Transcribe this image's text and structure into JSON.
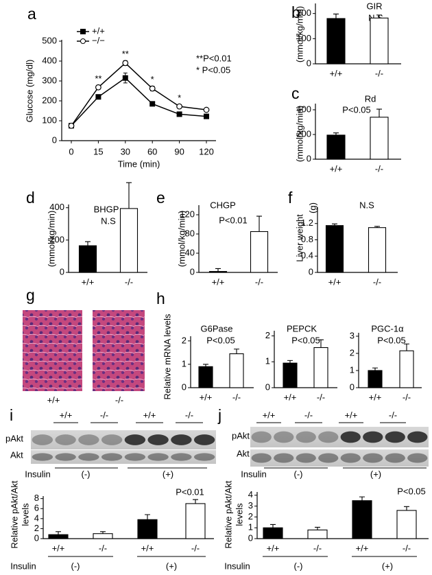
{
  "chart_data": [
    {
      "type": "line",
      "panel": "a",
      "xlabel": "Time (min)",
      "ylabel": "Glucose (mg/dl)",
      "categories": [
        "0",
        "15",
        "30",
        "60",
        "90",
        "120"
      ],
      "ylim": [
        0,
        500
      ],
      "yticks": [
        0,
        100,
        200,
        300,
        400,
        500
      ],
      "series": [
        {
          "name": "+/+",
          "color": "#000000",
          "marker": "square",
          "values": [
            75,
            220,
            315,
            185,
            133,
            122
          ],
          "errors": [
            3,
            8,
            25,
            10,
            8,
            8
          ]
        },
        {
          "name": "−/−",
          "color": "#ffffff",
          "marker": "circle",
          "values": [
            75,
            268,
            390,
            262,
            172,
            155
          ],
          "errors": [
            3,
            10,
            12,
            12,
            8,
            6
          ]
        }
      ],
      "significance": [
        null,
        "**",
        "**",
        "*",
        "*",
        null
      ],
      "notes": [
        "**P<0.01",
        "* P<0.05"
      ]
    },
    {
      "type": "bar",
      "panel": "b",
      "title": "GIR",
      "subtitle": "N.S",
      "ylabel": "(mmol/kg/min)",
      "categories": [
        "+/+",
        "-/-"
      ],
      "values": [
        180,
        182
      ],
      "errors": [
        18,
        12
      ],
      "colors": [
        "#000000",
        "#ffffff"
      ],
      "ylim": [
        0,
        240
      ],
      "yticks": [
        0,
        100,
        200
      ]
    },
    {
      "type": "bar",
      "panel": "c",
      "title": "Rd",
      "subtitle": "P<0.05",
      "ylabel": "(mmol/kg/min)",
      "categories": [
        "+/+",
        "-/-"
      ],
      "values": [
        195,
        340
      ],
      "errors": [
        18,
        65
      ],
      "colors": [
        "#000000",
        "#ffffff"
      ],
      "ylim": [
        0,
        450
      ],
      "yticks": [
        0,
        200,
        400
      ]
    },
    {
      "type": "bar",
      "panel": "d",
      "title": "BHGP",
      "subtitle": "N.S",
      "ylabel": "(mmol/kg/min)",
      "categories": [
        "+/+",
        "-/-"
      ],
      "values": [
        165,
        395
      ],
      "errors": [
        25,
        160
      ],
      "colors": [
        "#000000",
        "#ffffff"
      ],
      "ylim": [
        0,
        420
      ],
      "yticks": [
        0,
        200,
        400
      ]
    },
    {
      "type": "bar",
      "panel": "e",
      "title": "CHGP",
      "subtitle": "P<0.01",
      "ylabel": "(mmol/kg/min)",
      "categories": [
        "+/+",
        "-/-"
      ],
      "values": [
        2,
        85
      ],
      "errors": [
        6,
        32
      ],
      "colors": [
        "#000000",
        "#ffffff"
      ],
      "ylim": [
        0,
        140
      ],
      "yticks": [
        0,
        40,
        80,
        120
      ]
    },
    {
      "type": "bar",
      "panel": "f",
      "title": "N.S",
      "ylabel": "Liver weight",
      "unit": "(g)",
      "categories": [
        "+/+",
        "-/-"
      ],
      "values": [
        1.15,
        1.1
      ],
      "errors": [
        0.04,
        0.03
      ],
      "colors": [
        "#000000",
        "#ffffff"
      ],
      "ylim": [
        0,
        1.6
      ],
      "yticks": [
        0,
        0.4,
        0.8,
        1.2
      ]
    },
    {
      "type": "bar",
      "panel": "h",
      "title": "G6Pase",
      "subtitle": "P<0.05",
      "ylabel": "Relative mRNA levels",
      "categories": [
        "+/+",
        "-/-"
      ],
      "values": [
        0.9,
        1.45
      ],
      "errors": [
        0.1,
        0.2
      ],
      "colors": [
        "#000000",
        "#ffffff"
      ],
      "ylim": [
        0,
        2.2
      ],
      "yticks": [
        0,
        1,
        2
      ]
    },
    {
      "type": "bar",
      "title": "PEPCK",
      "subtitle": "P<0.05",
      "categories": [
        "+/+",
        "-/-"
      ],
      "values": [
        0.95,
        1.55
      ],
      "errors": [
        0.1,
        0.3
      ],
      "colors": [
        "#000000",
        "#ffffff"
      ],
      "ylim": [
        0,
        2.2
      ],
      "yticks": [
        0,
        1,
        2
      ]
    },
    {
      "type": "bar",
      "title": "PGC-1α",
      "subtitle": "P<0.05",
      "categories": [
        "+/+",
        "-/-"
      ],
      "values": [
        1.0,
        2.15
      ],
      "errors": [
        0.15,
        0.4
      ],
      "colors": [
        "#000000",
        "#ffffff"
      ],
      "ylim": [
        0,
        3.2
      ],
      "yticks": [
        0,
        1,
        2,
        3
      ]
    },
    {
      "type": "bar",
      "subtitle": "P<0.01",
      "ylabel": [
        "Relative pAkt/Akt",
        "levels"
      ],
      "categories": [
        "+/+",
        "-/-",
        "+/+",
        "-/-"
      ],
      "values": [
        0.8,
        1.0,
        3.8,
        7.0
      ],
      "errors": [
        0.6,
        0.4,
        1.0,
        0.8
      ],
      "colors": [
        "#000000",
        "#ffffff",
        "#000000",
        "#ffffff"
      ],
      "condition_label": "Insulin",
      "conditions": [
        "(-)",
        "(+)"
      ],
      "ylim": [
        0,
        8.5
      ],
      "yticks": [
        0,
        2,
        4,
        6,
        8
      ]
    },
    {
      "type": "bar",
      "subtitle": "P<0.05",
      "ylabel": [
        "Relative pAkt/Akt",
        "levels"
      ],
      "categories": [
        "+/+",
        "-/-",
        "+/+",
        "-/-"
      ],
      "values": [
        1.0,
        0.8,
        3.5,
        2.6
      ],
      "errors": [
        0.3,
        0.25,
        0.35,
        0.35
      ],
      "colors": [
        "#000000",
        "#ffffff",
        "#000000",
        "#ffffff"
      ],
      "condition_label": "Insulin",
      "conditions": [
        "(-)",
        "(+)"
      ],
      "ylim": [
        0,
        4.3
      ],
      "yticks": [
        0,
        1,
        2,
        3,
        4
      ]
    }
  ],
  "histology": {
    "panel": "g",
    "labels": [
      "+/+",
      "-/-"
    ]
  },
  "blots": [
    {
      "panel": "i",
      "groups": [
        "+/+",
        "-/-",
        "+/+",
        "-/-"
      ],
      "rows": [
        "pAkt",
        "Akt"
      ],
      "condition_label": "Insulin",
      "conditions": [
        "(-)",
        "(+)"
      ]
    },
    {
      "panel": "j",
      "groups": [
        "+/+",
        "-/-",
        "+/+",
        "-/-"
      ],
      "rows": [
        "pAkt",
        "Akt"
      ],
      "condition_label": "Insulin",
      "conditions": [
        "(-)",
        "(+)"
      ]
    }
  ]
}
